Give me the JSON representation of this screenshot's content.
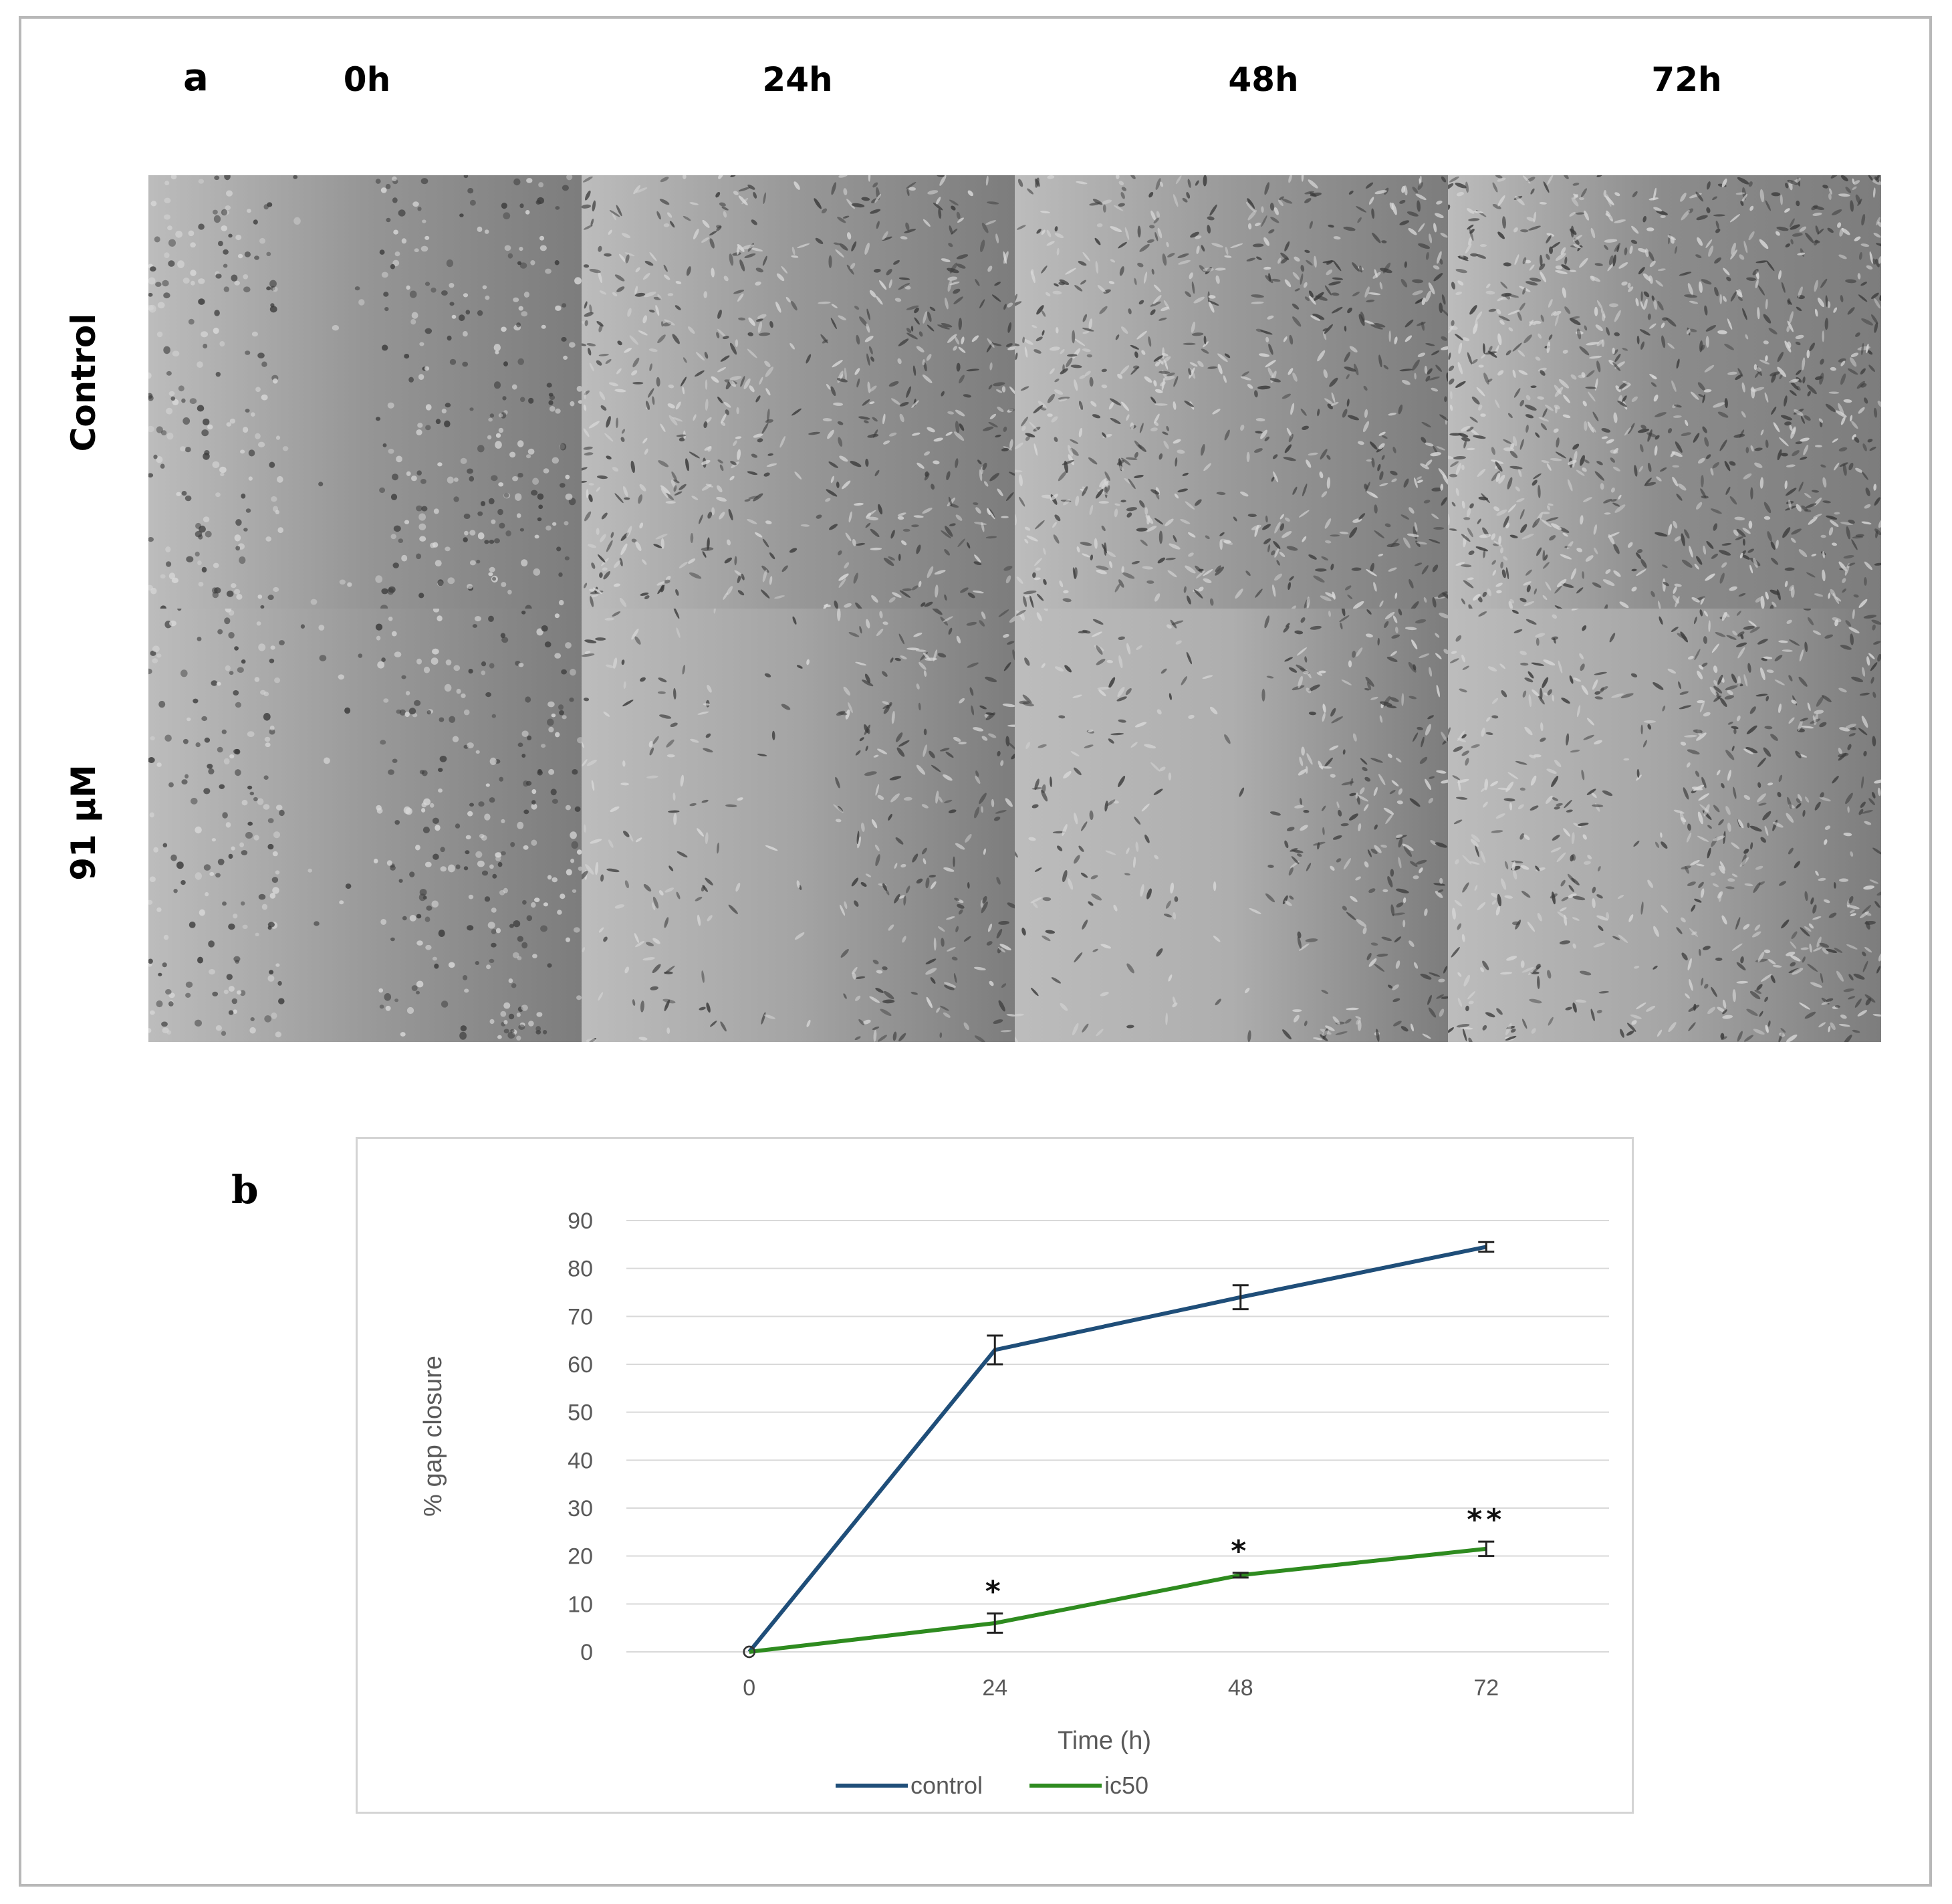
{
  "panel_a": {
    "letter": "a",
    "columns": [
      "0h",
      "24h",
      "48h",
      "72h"
    ],
    "rows": [
      "Control",
      "91 µM"
    ]
  },
  "panel_b": {
    "letter": "b"
  },
  "chart_data": {
    "type": "line",
    "title": "",
    "xlabel": "Time (h)",
    "ylabel": "% gap closure",
    "categories": [
      "0",
      "24",
      "48",
      "72"
    ],
    "ylim": [
      0,
      90
    ],
    "yticks": [
      0,
      10,
      20,
      30,
      40,
      50,
      60,
      70,
      80,
      90
    ],
    "grid": true,
    "legend_position": "bottom",
    "series": [
      {
        "name": "control",
        "color": "#1f4e79",
        "values": [
          0,
          63,
          74,
          84.5
        ],
        "errors": [
          0,
          3,
          2.5,
          1
        ],
        "annotations": [
          "",
          "",
          "",
          ""
        ]
      },
      {
        "name": "ic50",
        "color": "#2e8b1f",
        "values": [
          0,
          6,
          16,
          21.5
        ],
        "errors": [
          0,
          2,
          0.5,
          1.5
        ],
        "annotations": [
          "",
          "*",
          "*",
          "**"
        ]
      }
    ]
  }
}
